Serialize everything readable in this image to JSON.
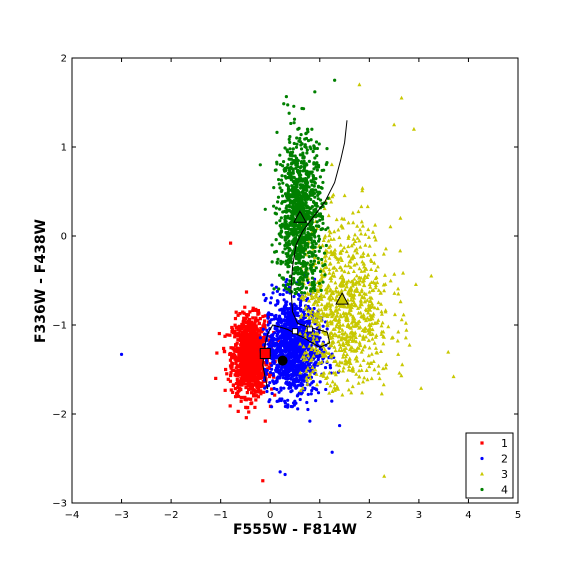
{
  "chart_data": {
    "type": "scatter",
    "title": "",
    "xlabel": "F555W - F814W",
    "ylabel": "F336W - F438W",
    "xlim": [
      -4,
      5
    ],
    "ylim": [
      -3,
      2
    ],
    "x_ticks": [
      "−4",
      "−3",
      "−2",
      "−1",
      "0",
      "1",
      "2",
      "3",
      "4",
      "5"
    ],
    "y_ticks": [
      "−3",
      "−2",
      "−1",
      "0",
      "1",
      "2"
    ],
    "legend_position": "bottom-right",
    "grid": false,
    "series": [
      {
        "name": "1",
        "color": "#ff0000",
        "marker": "square",
        "cluster": {
          "cx": -0.4,
          "cy": -1.35,
          "sx": 0.18,
          "sy": 0.22,
          "n": 1100
        },
        "range": {
          "x": [
            -1.2,
            0.2
          ],
          "y": [
            -2.05,
            -0.3
          ]
        },
        "outliers": [
          [
            -0.8,
            -0.08
          ],
          [
            -0.15,
            -2.75
          ],
          [
            -0.1,
            -2.08
          ],
          [
            -1.1,
            -1.6
          ],
          [
            -0.9,
            -1.5
          ]
        ]
      },
      {
        "name": "2",
        "color": "#0000ff",
        "marker": "circle",
        "cluster": {
          "cx": 0.45,
          "cy": -1.25,
          "sx": 0.28,
          "sy": 0.28,
          "n": 1300
        },
        "range": {
          "x": [
            -0.2,
            1.7
          ],
          "y": [
            -1.95,
            -0.3
          ]
        },
        "outliers": [
          [
            -3.0,
            -1.33
          ],
          [
            0.2,
            -2.65
          ],
          [
            1.25,
            -2.43
          ],
          [
            0.8,
            -2.08
          ],
          [
            1.4,
            -2.13
          ],
          [
            0.3,
            -2.68
          ]
        ]
      },
      {
        "name": "3",
        "color": "#c8c800",
        "marker": "triangle",
        "cluster": {
          "cx": 1.45,
          "cy": -0.85,
          "sx": 0.5,
          "sy": 0.5,
          "n": 1000
        },
        "range": {
          "x": [
            0.6,
            3.7
          ],
          "y": [
            -1.8,
            1.7
          ]
        },
        "outliers": [
          [
            2.3,
            -2.7
          ],
          [
            2.65,
            1.55
          ],
          [
            2.9,
            1.2
          ],
          [
            3.25,
            -0.45
          ],
          [
            3.7,
            -1.58
          ],
          [
            2.5,
            1.25
          ],
          [
            1.8,
            1.7
          ]
        ]
      },
      {
        "name": "4",
        "color": "#008000",
        "marker": "circle",
        "cluster": {
          "cx": 0.6,
          "cy": 0.2,
          "sx": 0.22,
          "sy": 0.45,
          "n": 1100
        },
        "range": {
          "x": [
            0.0,
            1.4
          ],
          "y": [
            -0.65,
            1.75
          ]
        },
        "outliers": [
          [
            1.3,
            1.75
          ],
          [
            -0.2,
            0.8
          ],
          [
            0.9,
            1.62
          ],
          [
            -0.1,
            0.3
          ]
        ]
      }
    ],
    "isochrone": [
      [
        1.55,
        1.3
      ],
      [
        1.5,
        1.05
      ],
      [
        1.42,
        0.85
      ],
      [
        1.3,
        0.6
      ],
      [
        1.1,
        0.38
      ],
      [
        0.85,
        0.2
      ],
      [
        0.65,
        0.05
      ],
      [
        0.52,
        -0.1
      ],
      [
        0.45,
        -0.35
      ],
      [
        0.42,
        -0.6
      ],
      [
        0.45,
        -0.85
      ],
      [
        0.55,
        -0.98
      ],
      [
        0.75,
        -1.02
      ],
      [
        0.95,
        -1.05
      ],
      [
        1.15,
        -1.08
      ],
      [
        1.2,
        -1.2
      ],
      [
        1.0,
        -1.25
      ],
      [
        0.7,
        -1.15
      ],
      [
        0.35,
        -1.05
      ],
      [
        0.05,
        -1.0
      ],
      [
        -0.05,
        -1.1
      ],
      [
        -0.12,
        -1.25
      ],
      [
        -0.15,
        -1.45
      ],
      [
        -0.1,
        -1.6
      ],
      [
        -0.05,
        -1.72
      ]
    ],
    "markers": [
      {
        "shape": "open-square",
        "x": -0.1,
        "y": -1.32,
        "color": "#ff0000"
      },
      {
        "shape": "filled-circle",
        "x": 0.25,
        "y": -1.4,
        "color": "#000000"
      },
      {
        "shape": "open-triangle",
        "x": 1.45,
        "y": -0.72,
        "color": "#c8c800"
      },
      {
        "shape": "open-triangle",
        "x": 0.6,
        "y": 0.2,
        "color": "#008000"
      },
      {
        "shape": "small-square",
        "x": 0.5,
        "y": -1.07,
        "color": "#ffffff"
      },
      {
        "shape": "small-square",
        "x": 0.8,
        "y": -1.05,
        "color": "#ffffff"
      }
    ]
  }
}
